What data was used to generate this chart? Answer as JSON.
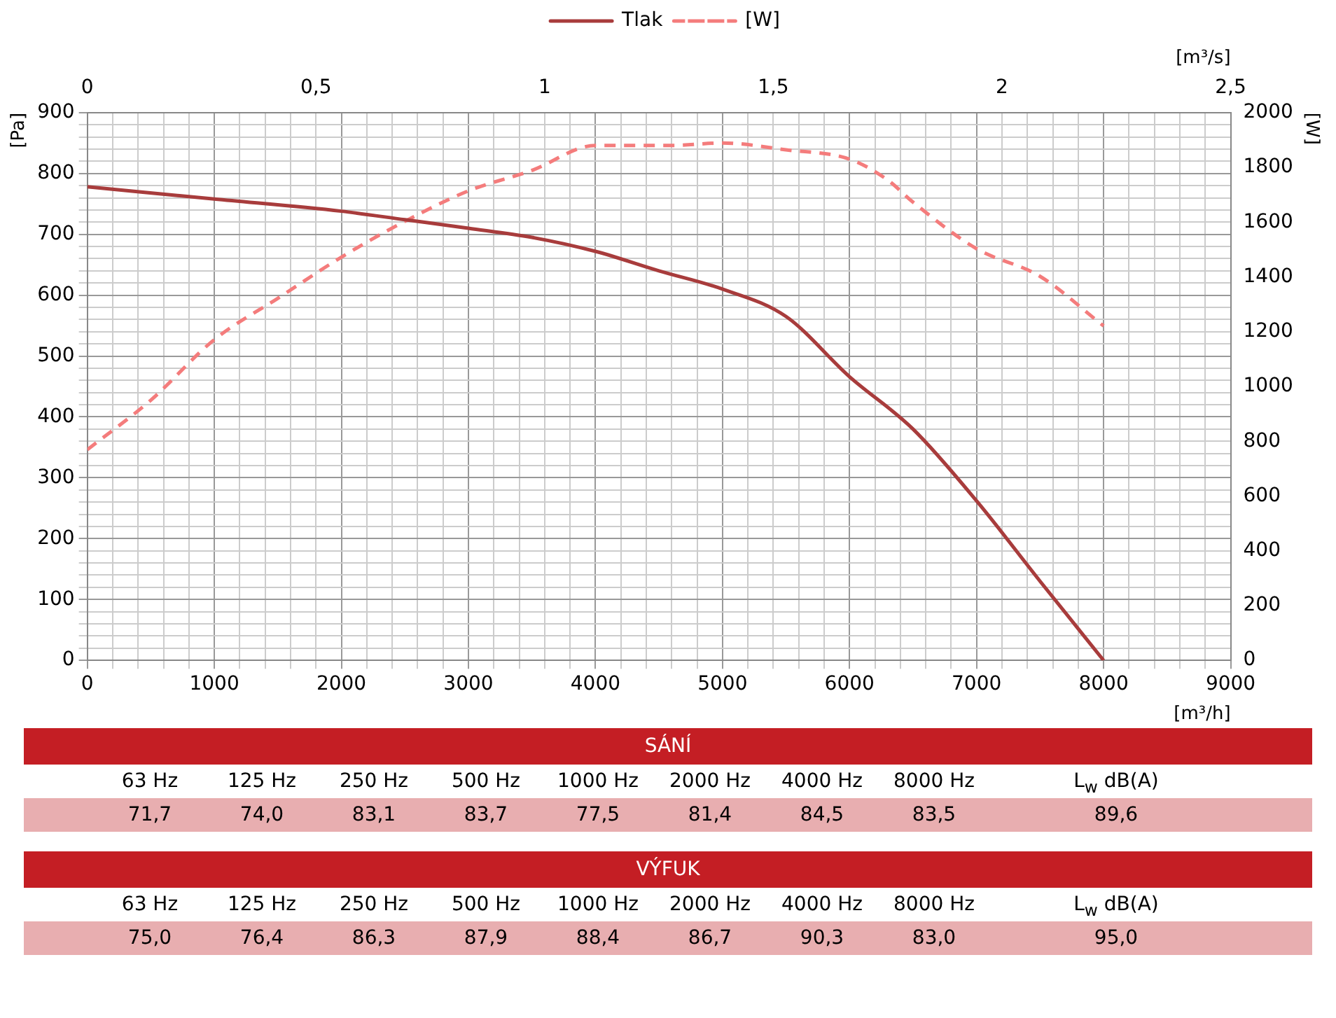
{
  "chart_data": [
    {
      "type": "line",
      "xlabel": "[m³/h]",
      "ylabel": "[Pa]",
      "y2label": "[W]",
      "x2label": "[m³/s]",
      "xlim": [
        0,
        9000
      ],
      "xticks": [
        0,
        {
          "value": 200,
          "label": null
        },
        {
          "value": 400,
          "label": null
        },
        {
          "value": 600,
          "label": null
        },
        {
          "value": 800,
          "label": null
        },
        1000,
        {
          "value": 1200,
          "label": null
        },
        {
          "value": 1400,
          "label": null
        },
        {
          "value": 1600,
          "label": null
        },
        {
          "value": 1800,
          "label": null
        },
        2000,
        {
          "value": 2200,
          "label": null
        },
        {
          "value": 2400,
          "label": null
        },
        {
          "value": 2600,
          "label": null
        },
        {
          "value": 2800,
          "label": null
        },
        3000,
        {
          "value": 3200,
          "label": null
        },
        {
          "value": 3400,
          "label": null
        },
        {
          "value": 3600,
          "label": null
        },
        {
          "value": 3800,
          "label": null
        },
        4000,
        {
          "value": 4200,
          "label": null
        },
        {
          "value": 4400,
          "label": null
        },
        {
          "value": 4600,
          "label": null
        },
        {
          "value": 4800,
          "label": null
        },
        5000,
        {
          "value": 5200,
          "label": null
        },
        {
          "value": 5400,
          "label": null
        },
        {
          "value": 5600,
          "label": null
        },
        {
          "value": 5800,
          "label": null
        },
        6000,
        {
          "value": 6200,
          "label": null
        },
        {
          "value": 6400,
          "label": null
        },
        {
          "value": 6600,
          "label": null
        },
        {
          "value": 6800,
          "label": null
        },
        7000,
        {
          "value": 7200,
          "label": null
        },
        {
          "value": 7400,
          "label": null
        },
        {
          "value": 7600,
          "label": null
        },
        {
          "value": 7800,
          "label": null
        },
        8000,
        {
          "value": 8200,
          "label": null
        },
        {
          "value": 8400,
          "label": null
        },
        {
          "value": 8600,
          "label": null
        },
        {
          "value": 8800,
          "label": null
        },
        9000
      ],
      "ylim": [
        0,
        900
      ],
      "yticks": [
        0,
        {
          "value": 20,
          "label": null
        },
        {
          "value": 40,
          "label": null
        },
        {
          "value": 60,
          "label": null
        },
        {
          "value": 80,
          "label": null
        },
        100,
        {
          "value": 120,
          "label": null
        },
        {
          "value": 140,
          "label": null
        },
        {
          "value": 160,
          "label": null
        },
        {
          "value": 180,
          "label": null
        },
        200,
        {
          "value": 220,
          "label": null
        },
        {
          "value": 240,
          "label": null
        },
        {
          "value": 260,
          "label": null
        },
        {
          "value": 280,
          "label": null
        },
        300,
        {
          "value": 320,
          "label": null
        },
        {
          "value": 340,
          "label": null
        },
        {
          "value": 360,
          "label": null
        },
        {
          "value": 380,
          "label": null
        },
        400,
        {
          "value": 420,
          "label": null
        },
        {
          "value": 440,
          "label": null
        },
        {
          "value": 460,
          "label": null
        },
        {
          "value": 480,
          "label": null
        },
        500,
        {
          "value": 520,
          "label": null
        },
        {
          "value": 540,
          "label": null
        },
        {
          "value": 560,
          "label": null
        },
        {
          "value": 580,
          "label": null
        },
        600,
        {
          "value": 620,
          "label": null
        },
        {
          "value": 640,
          "label": null
        },
        {
          "value": 660,
          "label": null
        },
        {
          "value": 680,
          "label": null
        },
        700,
        {
          "value": 720,
          "label": null
        },
        {
          "value": 740,
          "label": null
        },
        {
          "value": 760,
          "label": null
        },
        {
          "value": 780,
          "label": null
        },
        800,
        {
          "value": 820,
          "label": null
        },
        {
          "value": 840,
          "label": null
        },
        {
          "value": 860,
          "label": null
        },
        {
          "value": 880,
          "label": null
        },
        900
      ],
      "y2lim": [
        0,
        2000
      ],
      "y2ticks": [
        0,
        200,
        400,
        600,
        800,
        1000,
        1200,
        1400,
        1600,
        1800,
        2000
      ],
      "x2lim": [
        0,
        2.5
      ],
      "x2ticks": [
        0,
        {
          "value": 0.5,
          "label": "0,5"
        },
        1,
        {
          "value": 1.5,
          "label": "1,5"
        },
        2,
        {
          "value": 2.5,
          "label": "2,5"
        }
      ],
      "grid": true,
      "legend": "top",
      "marker": "none",
      "series": [
        {
          "name": "Tlak",
          "color": "#a83c3c",
          "line_style": "solid",
          "x": [
            0,
            1000,
            2000,
            2500,
            3000,
            3500,
            4000,
            4500,
            5000,
            5500,
            6000,
            6500,
            7000,
            7500,
            8000
          ],
          "values": [
            778,
            758,
            738,
            724,
            710,
            695,
            672,
            640,
            610,
            565,
            466,
            380,
            262,
            130,
            0
          ]
        },
        {
          "name": "[W]",
          "color": "#f47c7c",
          "line_style": "dashed",
          "axis": "y2",
          "x": [
            0,
            500,
            1000,
            1500,
            2000,
            2500,
            3000,
            3500,
            4000,
            4600,
            5000,
            5500,
            6000,
            6300,
            6500,
            7000,
            7500,
            8000
          ],
          "values": [
            769,
            950,
            1171,
            1322,
            1472,
            1603,
            1714,
            1789,
            1880,
            1880,
            1889,
            1864,
            1830,
            1754,
            1673,
            1503,
            1402,
            1221
          ]
        }
      ]
    },
    {
      "type": "other",
      "title": "SÁNÍ",
      "categories": [
        "63 Hz",
        "125 Hz",
        "250 Hz",
        "500 Hz",
        "1000 Hz",
        "2000 Hz",
        "4000 Hz",
        "8000 Hz",
        "L$_{w}$ dB(A)"
      ],
      "value_labels": [
        "71,7",
        "74,0",
        "83,1",
        "83,7",
        "77,5",
        "81,4",
        "84,5",
        "83,5",
        "89,6"
      ]
    },
    {
      "type": "other",
      "title": "VÝFUK",
      "categories": [
        "63 Hz",
        "125 Hz",
        "250 Hz",
        "500 Hz",
        "1000 Hz",
        "2000 Hz",
        "4000 Hz",
        "8000 Hz",
        "L$_{w}$ dB(A)"
      ],
      "value_labels": [
        "75,0",
        "76,4",
        "86,3",
        "87,9",
        "88,4",
        "86,7",
        "90,3",
        "83,0",
        "95,0"
      ]
    }
  ]
}
